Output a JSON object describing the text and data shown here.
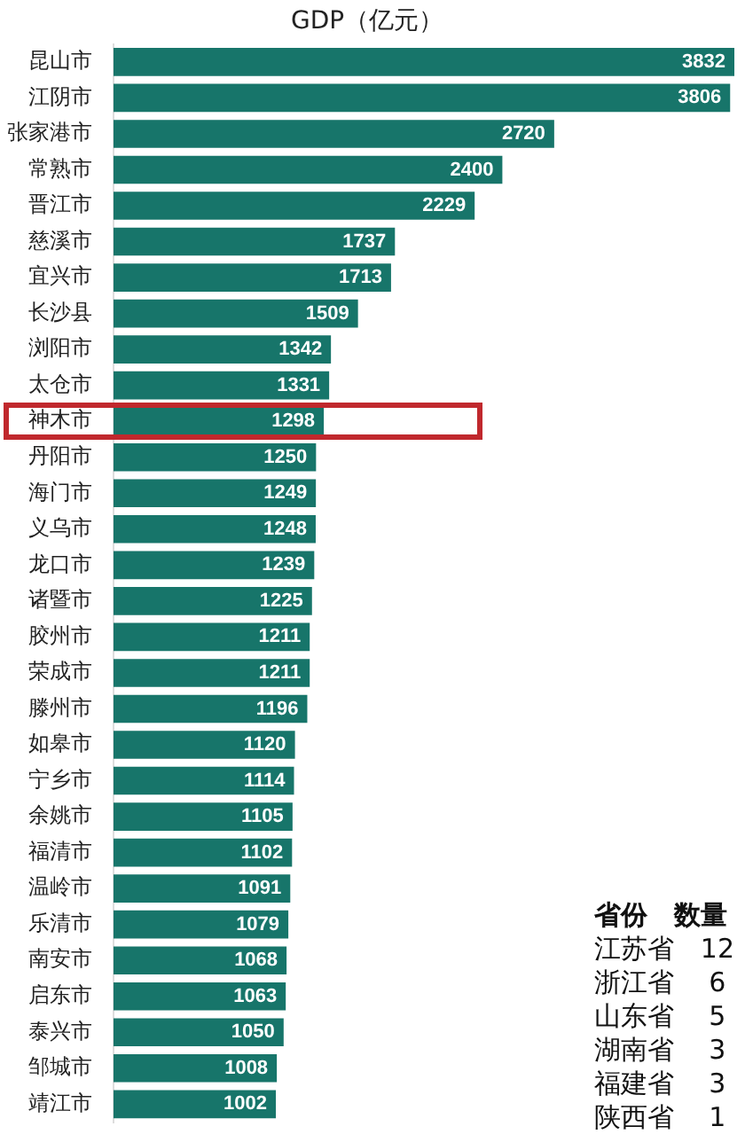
{
  "chart_data": {
    "type": "bar",
    "orientation": "horizontal",
    "title": "GDP（亿元）",
    "categories": [
      "昆山市",
      "江阴市",
      "张家港市",
      "常熟市",
      "晋江市",
      "慈溪市",
      "宜兴市",
      "长沙县",
      "浏阳市",
      "太仓市",
      "神木市",
      "丹阳市",
      "海门市",
      "义乌市",
      "龙口市",
      "诸暨市",
      "胶州市",
      "荣成市",
      "滕州市",
      "如皋市",
      "宁乡市",
      "余姚市",
      "福清市",
      "温岭市",
      "乐清市",
      "南安市",
      "启东市",
      "泰兴市",
      "邹城市",
      "靖江市"
    ],
    "values": [
      3832,
      3806,
      2720,
      2400,
      2229,
      1737,
      1713,
      1509,
      1342,
      1331,
      1298,
      1250,
      1249,
      1248,
      1239,
      1225,
      1211,
      1211,
      1196,
      1120,
      1114,
      1105,
      1102,
      1091,
      1079,
      1068,
      1063,
      1050,
      1008,
      1002
    ],
    "color": "#17756a",
    "data_labels": true,
    "tick_labels": "y",
    "grid": false,
    "legend": false,
    "annotations": [
      "省份　数量",
      "江苏省　12",
      "浙江省　 6",
      "山东省　 5",
      "湖南省　 3",
      "福建省　 3",
      "陕西省　 1"
    ]
  }
}
